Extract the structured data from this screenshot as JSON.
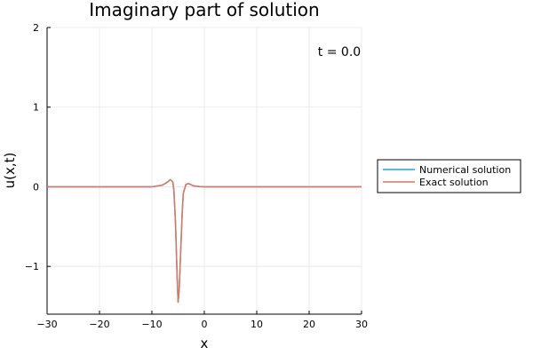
{
  "chart_data": {
    "type": "line",
    "title": "Imaginary part of solution",
    "xlabel": "x",
    "ylabel": "u(x,t)",
    "xlim": [
      -30,
      30
    ],
    "ylim": [
      -1.6,
      2
    ],
    "xticks": [
      -30,
      -20,
      -10,
      0,
      10,
      20,
      30
    ],
    "xtick_labels": [
      "−30",
      "−20",
      "−10",
      "0",
      "10",
      "20",
      "30"
    ],
    "yticks": [
      -1,
      0,
      1,
      2
    ],
    "ytick_labels": [
      "−1",
      "0",
      "1",
      "2"
    ],
    "grid": true,
    "legend_position": "outer right",
    "annotation": "t = 0.0",
    "series": [
      {
        "name": "Numerical solution",
        "color": "#1ea7e1",
        "x": [
          -30,
          -10,
          -8,
          -7,
          -6.5,
          -6,
          -5.8,
          -5.5,
          -5.2,
          -5,
          -4.8,
          -4.5,
          -4.2,
          -4,
          -3.5,
          -3,
          -2.5,
          -2,
          -1,
          0,
          2,
          30
        ],
        "y": [
          0,
          0,
          0.02,
          0.06,
          0.09,
          0.06,
          -0.05,
          -0.45,
          -1.1,
          -1.45,
          -1.3,
          -0.8,
          -0.3,
          -0.08,
          0.03,
          0.04,
          0.025,
          0.01,
          0.003,
          0,
          0,
          0
        ]
      },
      {
        "name": "Exact solution",
        "color": "#e2735f",
        "x": [
          -30,
          -10,
          -8,
          -7,
          -6.5,
          -6,
          -5.8,
          -5.5,
          -5.2,
          -5,
          -4.8,
          -4.5,
          -4.2,
          -4,
          -3.5,
          -3,
          -2.5,
          -2,
          -1,
          0,
          2,
          30
        ],
        "y": [
          0,
          0,
          0.02,
          0.06,
          0.09,
          0.06,
          -0.05,
          -0.45,
          -1.1,
          -1.45,
          -1.3,
          -0.8,
          -0.3,
          -0.08,
          0.03,
          0.04,
          0.025,
          0.01,
          0.003,
          0,
          0,
          0
        ]
      }
    ]
  }
}
